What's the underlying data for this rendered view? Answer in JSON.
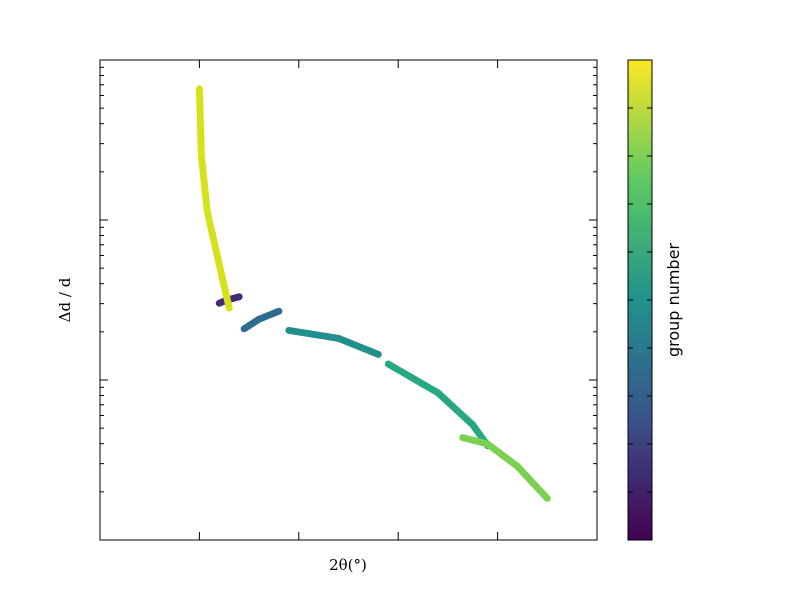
{
  "chart_data": {
    "type": "scatter",
    "title": "",
    "xlabel": "2θ(°)",
    "ylabel": "Δd / d",
    "xlim": [
      0,
      5
    ],
    "ylim": [
      0,
      3
    ],
    "yscale": "log",
    "grid": false,
    "legend": "none",
    "colorbar": {
      "label": "group number",
      "colormap": "viridis",
      "range": [
        0,
        1
      ],
      "stops": [
        "#440154",
        "#3b528b",
        "#21918c",
        "#5ec962",
        "#fde725"
      ]
    },
    "series": [
      {
        "group": 0.0,
        "color": "#452a79",
        "x": [
          1.2,
          1.28,
          1.4
        ],
        "y": [
          1.48,
          1.5,
          1.52
        ]
      },
      {
        "group": 0.35,
        "color": "#2e6d8e",
        "x": [
          1.45,
          1.6,
          1.8
        ],
        "y": [
          1.32,
          1.38,
          1.43
        ]
      },
      {
        "group": 0.5,
        "color": "#21908c",
        "x": [
          1.9,
          2.4,
          2.8
        ],
        "y": [
          1.31,
          1.26,
          1.16
        ]
      },
      {
        "group": 0.6,
        "color": "#27a883",
        "x": [
          2.9,
          3.4,
          3.75,
          3.9
        ],
        "y": [
          1.1,
          0.92,
          0.72,
          0.59
        ]
      },
      {
        "group": 0.8,
        "color": "#7ad151",
        "x": [
          3.65,
          3.9,
          4.2,
          4.5
        ],
        "y": [
          0.64,
          0.6,
          0.46,
          0.26
        ]
      },
      {
        "group": 0.95,
        "color": "#d5e21a",
        "x": [
          1.0,
          1.02,
          1.08,
          1.2,
          1.3
        ],
        "y": [
          2.82,
          2.4,
          2.05,
          1.72,
          1.45
        ]
      }
    ]
  }
}
